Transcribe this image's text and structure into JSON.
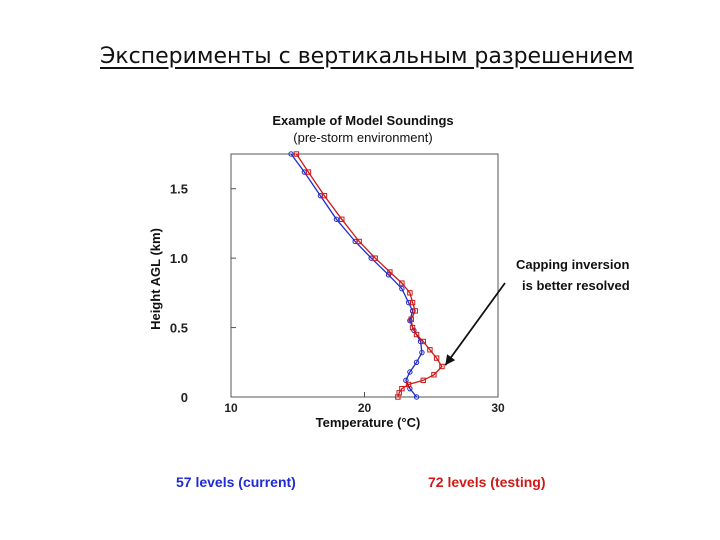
{
  "slide": {
    "title": "Эксперименты с вертикальным разрешением"
  },
  "chart_data": {
    "type": "line",
    "title": "Example of Model Soundings",
    "subtitle": "(pre-storm environment)",
    "xlabel": "Temperature (°C)",
    "ylabel": "Height AGL (km)",
    "xlim": [
      10,
      30
    ],
    "ylim": [
      0,
      1.75
    ],
    "x_ticks": [
      10,
      20,
      30
    ],
    "y_ticks": [
      0,
      0.5,
      1.0,
      1.5
    ],
    "y_tick_labels": [
      "0",
      "0.5",
      "1.0",
      "1.5"
    ],
    "grid": false,
    "series": [
      {
        "name": "57 levels (current)",
        "color": "#1f2bd0",
        "points": [
          [
            23.9,
            0.0
          ],
          [
            23.4,
            0.06
          ],
          [
            23.1,
            0.12
          ],
          [
            23.4,
            0.18
          ],
          [
            23.9,
            0.25
          ],
          [
            24.3,
            0.32
          ],
          [
            24.2,
            0.4
          ],
          [
            23.7,
            0.48
          ],
          [
            23.4,
            0.55
          ],
          [
            23.6,
            0.62
          ],
          [
            23.3,
            0.68
          ],
          [
            22.8,
            0.78
          ],
          [
            21.8,
            0.88
          ],
          [
            20.5,
            1.0
          ],
          [
            19.3,
            1.12
          ],
          [
            17.9,
            1.28
          ],
          [
            16.7,
            1.45
          ],
          [
            15.5,
            1.62
          ],
          [
            14.5,
            1.75
          ]
        ]
      },
      {
        "name": "72 levels (testing)",
        "color": "#d01818",
        "points": [
          [
            22.5,
            0.0
          ],
          [
            22.6,
            0.03
          ],
          [
            22.8,
            0.06
          ],
          [
            23.3,
            0.09
          ],
          [
            24.4,
            0.12
          ],
          [
            25.2,
            0.16
          ],
          [
            25.8,
            0.22
          ],
          [
            25.4,
            0.28
          ],
          [
            24.9,
            0.34
          ],
          [
            24.4,
            0.4
          ],
          [
            23.9,
            0.45
          ],
          [
            23.6,
            0.5
          ],
          [
            23.5,
            0.56
          ],
          [
            23.8,
            0.62
          ],
          [
            23.6,
            0.68
          ],
          [
            23.4,
            0.75
          ],
          [
            22.8,
            0.82
          ],
          [
            21.9,
            0.9
          ],
          [
            20.8,
            1.0
          ],
          [
            19.6,
            1.12
          ],
          [
            18.3,
            1.28
          ],
          [
            17.0,
            1.45
          ],
          [
            15.8,
            1.62
          ],
          [
            14.9,
            1.75
          ]
        ]
      }
    ],
    "annotation": {
      "lines": [
        "Capping inversion",
        "is better resolved"
      ],
      "target": [
        25.6,
        0.2
      ]
    }
  },
  "legend": {
    "blue_label": "57 levels (current)",
    "red_label": "72 levels (testing)"
  }
}
